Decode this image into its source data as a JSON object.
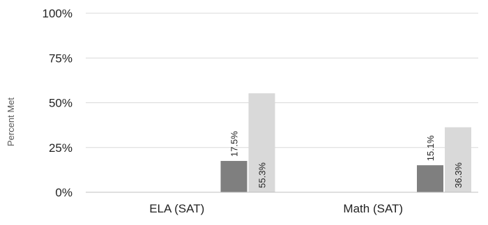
{
  "chart_data": {
    "type": "bar",
    "title": "",
    "xlabel": "",
    "ylabel": "Percent Met",
    "ylim": [
      0,
      100
    ],
    "yticks": [
      "0%",
      "25%",
      "50%",
      "75%",
      "100%"
    ],
    "categories": [
      "ELA (SAT)",
      "Math (SAT)"
    ],
    "grid": true,
    "legend": "none",
    "series": [
      {
        "values": [
          0,
          0
        ],
        "color": "#bfbfbf",
        "labels": [
          "",
          ""
        ]
      },
      {
        "values": [
          17.5,
          15.1
        ],
        "color": "#7f7f7f",
        "labels": [
          "17.5%",
          "15.1%"
        ]
      },
      {
        "values": [
          55.3,
          36.3
        ],
        "color": "#d9d9d9",
        "labels": [
          "55.3%",
          "36.3%"
        ]
      }
    ]
  }
}
